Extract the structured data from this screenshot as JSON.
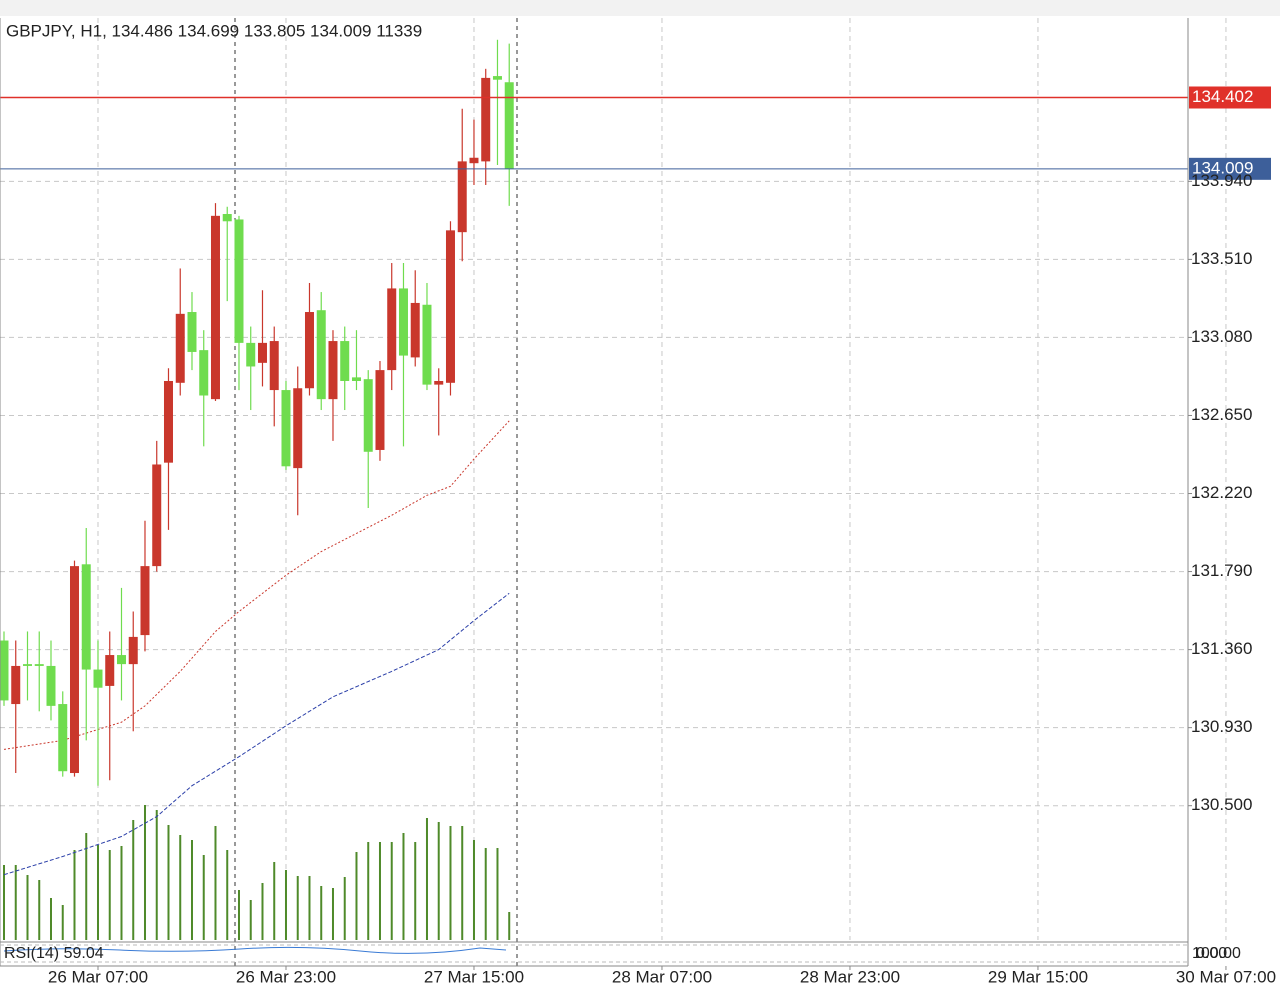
{
  "chart_data": {
    "type": "candlestick",
    "title": "GBPJPY, H1, 134.486 134.699 133.805 134.009 11339",
    "up_color": "#c9372c",
    "down_color": "#6fdc4e",
    "open": [
      131.41,
      131.06,
      131.28,
      131.28,
      131.27,
      131.06,
      130.68,
      131.83,
      131.25,
      131.16,
      131.33,
      131.28,
      131.44,
      131.82,
      132.39,
      132.83,
      133.22,
      133.01,
      132.74,
      133.76,
      133.73,
      133.05,
      132.94,
      132.79,
      132.79,
      132.36,
      132.8,
      133.23,
      132.74,
      133.06,
      132.86,
      132.85,
      132.46,
      132.9,
      133.35,
      132.97,
      133.26,
      132.82,
      132.83,
      133.66,
      134.04,
      134.05,
      134.52,
      134.486
    ],
    "high": [
      131.46,
      131.41,
      131.46,
      131.46,
      131.41,
      131.13,
      131.85,
      132.03,
      131.41,
      131.46,
      131.7,
      131.57,
      132.07,
      132.51,
      132.91,
      133.46,
      133.33,
      133.12,
      133.82,
      133.8,
      133.75,
      133.14,
      133.34,
      133.14,
      132.84,
      132.92,
      133.38,
      133.33,
      133.12,
      133.14,
      133.12,
      132.9,
      132.95,
      133.49,
      133.49,
      133.45,
      133.38,
      132.91,
      133.72,
      134.34,
      134.28,
      134.56,
      134.72,
      134.699
    ],
    "low": [
      131.05,
      130.68,
      131.08,
      131.02,
      130.97,
      130.66,
      130.66,
      130.86,
      130.61,
      130.64,
      131.08,
      130.91,
      131.35,
      131.79,
      132.02,
      132.76,
      132.9,
      132.48,
      132.73,
      133.28,
      132.79,
      132.68,
      132.81,
      132.59,
      132.35,
      132.1,
      132.76,
      132.68,
      132.51,
      132.68,
      132.79,
      132.14,
      132.4,
      132.79,
      132.48,
      132.92,
      132.79,
      132.54,
      132.76,
      133.5,
      133.92,
      133.92,
      134.03,
      133.805
    ],
    "close": [
      131.08,
      131.27,
      131.27,
      131.27,
      131.05,
      130.69,
      131.82,
      131.25,
      131.15,
      131.33,
      131.28,
      131.43,
      131.82,
      132.38,
      132.84,
      133.21,
      133.0,
      132.76,
      133.75,
      133.72,
      133.05,
      132.92,
      133.05,
      133.06,
      132.37,
      132.8,
      133.22,
      132.74,
      133.06,
      132.84,
      132.84,
      132.45,
      132.9,
      133.35,
      132.98,
      133.27,
      132.82,
      132.84,
      133.67,
      134.05,
      134.07,
      134.51,
      134.5,
      134.009
    ],
    "series": [
      {
        "color": "#c9372c",
        "x": [
          0,
          5,
          10,
          12,
          15,
          18,
          20,
          24,
          27,
          30,
          33,
          36,
          38,
          40,
          43
        ],
        "values": [
          130.81,
          130.86,
          130.96,
          131.05,
          131.24,
          131.46,
          131.57,
          131.77,
          131.9,
          132.0,
          132.1,
          132.21,
          132.26,
          132.41,
          132.62
        ]
      },
      {
        "color": "#2b3fa8",
        "x": [
          0,
          5,
          10,
          13,
          16,
          20,
          24,
          28,
          33,
          37,
          40,
          43
        ],
        "values": [
          130.12,
          130.22,
          130.33,
          130.44,
          130.61,
          130.77,
          130.94,
          131.1,
          131.24,
          131.36,
          131.52,
          131.67
        ]
      }
    ],
    "volume": {
      "color": "#4f8a2a",
      "ylim": [
        0,
        373400
      ],
      "values": [
        30375,
        30375,
        26325,
        24300,
        17010,
        14175,
        36450,
        43335,
        38475,
        36450,
        38070,
        48600,
        54675,
        52650,
        46575,
        42525,
        40500,
        34425,
        46170,
        36450,
        20250,
        16200,
        23085,
        31590,
        28350,
        25920,
        25920,
        21870,
        21060,
        25515,
        35640,
        39690,
        39690,
        39690,
        43335,
        39690,
        49410,
        47790,
        46170,
        46170,
        40500,
        37260,
        37260,
        11339
      ]
    },
    "price_lines": [
      {
        "value": 134.402,
        "label": "134.402",
        "color": "#e0312a"
      },
      {
        "value": 134.009,
        "label": "134.009",
        "color": "#3d5f9a"
      }
    ],
    "xlim": [
      -0.34,
      100.77
    ],
    "ylim": [
      129.76,
      134.84
    ],
    "xticks": [
      {
        "value": 8,
        "label": "26 Mar 07:00"
      },
      {
        "value": 24,
        "label": "26 Mar 23:00"
      },
      {
        "value": 40,
        "label": "27 Mar 15:00"
      },
      {
        "value": 56,
        "label": "28 Mar 07:00"
      },
      {
        "value": 72,
        "label": "28 Mar 23:00"
      },
      {
        "value": 88,
        "label": "29 Mar 15:00"
      },
      {
        "value": 104,
        "label": "30 Mar 07:00"
      }
    ],
    "yticks": [
      {
        "value": 133.94,
        "label": "133.940"
      },
      {
        "value": 133.51,
        "label": "133.510"
      },
      {
        "value": 133.08,
        "label": "133.080"
      },
      {
        "value": 132.65,
        "label": "132.650"
      },
      {
        "value": 132.22,
        "label": "132.220"
      },
      {
        "value": 131.79,
        "label": "131.790"
      },
      {
        "value": 131.36,
        "label": "131.360"
      },
      {
        "value": 130.93,
        "label": "130.930"
      },
      {
        "value": 130.5,
        "label": "130.500"
      }
    ],
    "grid": true,
    "rsi": {
      "label": "RSI(14) 59.04",
      "levels": [
        "100.00",
        "0.00"
      ]
    }
  }
}
